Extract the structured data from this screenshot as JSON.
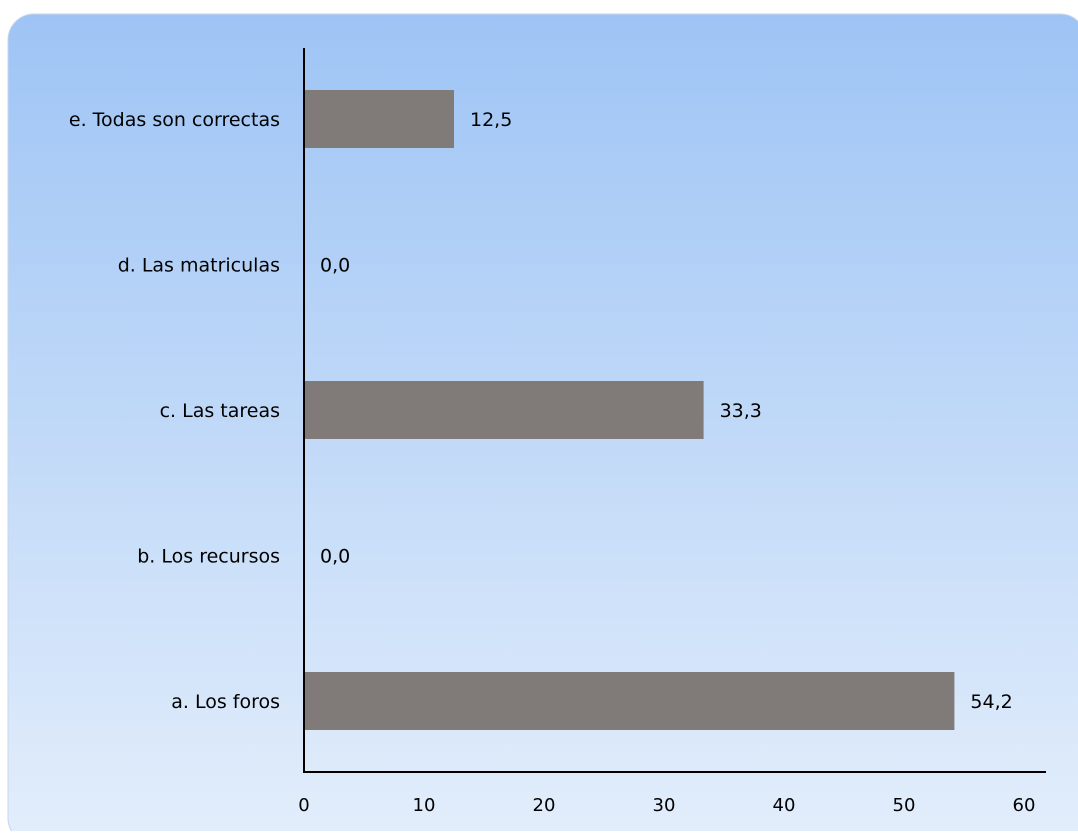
{
  "chart_data": {
    "type": "bar",
    "orientation": "horizontal",
    "categories": [
      "a. Los foros",
      "b. Los recursos",
      "c. Las tareas",
      "d. Las matriculas",
      "e. Todas son correctas"
    ],
    "values": [
      54.2,
      0.0,
      33.3,
      0.0,
      12.5
    ],
    "value_labels": [
      "54,2",
      "0,0",
      "33,3",
      "0,0",
      "12,5"
    ],
    "xlim": [
      0,
      60
    ],
    "x_ticks": [
      0,
      10,
      20,
      30,
      40,
      50,
      60
    ],
    "x_tick_labels": [
      "0",
      "10",
      "20",
      "30",
      "40",
      "50",
      "60"
    ],
    "grid": false,
    "legend": "none",
    "colors": {
      "bar": "#807b79",
      "background_top": "#9ec4f5",
      "background_bottom": "#e3eefb",
      "axis": "#000000",
      "frame_border": "#c8d6e8"
    }
  }
}
